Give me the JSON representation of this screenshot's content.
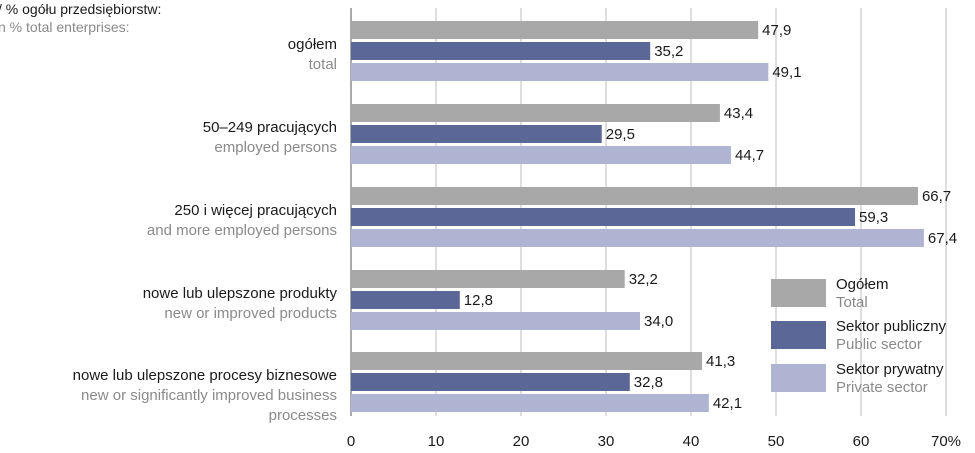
{
  "unit_label": {
    "pl": "/ % ogółu przedsiębiorstw:",
    "en": "n % total enterprises:"
  },
  "chart_data": {
    "type": "bar",
    "orientation": "horizontal",
    "categories": [
      {
        "pl": "ogółem",
        "en": [
          "total"
        ]
      },
      {
        "pl": "50–249 pracujących",
        "en": [
          "employed persons"
        ]
      },
      {
        "pl": "250 i więcej pracujących",
        "en": [
          "and more employed persons"
        ]
      },
      {
        "pl": "nowe lub ulepszone produkty",
        "en": [
          "new or improved products"
        ]
      },
      {
        "pl": "nowe lub ulepszone procesy biznesowe",
        "en": [
          "new or significantly improved business",
          "processes"
        ]
      }
    ],
    "series": [
      {
        "name": "Ogółem",
        "name_en": "Total",
        "color": "#a8a8a8",
        "values": [
          47.9,
          43.4,
          66.7,
          32.2,
          41.3
        ],
        "labels": [
          "47,9",
          "43,4",
          "66,7",
          "32,2",
          "41,3"
        ]
      },
      {
        "name": "Sektor publiczny",
        "name_en": "Public sector",
        "color": "#5b6796",
        "values": [
          35.2,
          29.5,
          59.3,
          12.8,
          32.8
        ],
        "labels": [
          "35,2",
          "29,5",
          "59,3",
          "12,8",
          "32,8"
        ]
      },
      {
        "name": "Sektor prywatny",
        "name_en": "Private sector",
        "color": "#b0b4d3",
        "values": [
          49.1,
          44.7,
          67.4,
          34.0,
          42.1
        ],
        "labels": [
          "49,1",
          "44,7",
          "67,4",
          "34,0",
          "42,1"
        ]
      }
    ],
    "xlim": [
      0,
      70
    ],
    "ticks": [
      {
        "value": 0,
        "label": "0"
      },
      {
        "value": 10,
        "label": "10"
      },
      {
        "value": 20,
        "label": "20"
      },
      {
        "value": 30,
        "label": "30"
      },
      {
        "value": 40,
        "label": "40"
      },
      {
        "value": 50,
        "label": "50"
      },
      {
        "value": 60,
        "label": "60"
      },
      {
        "value": 70,
        "label": "70%"
      }
    ],
    "grid": "vertical",
    "legend_position": "bottom-right"
  }
}
